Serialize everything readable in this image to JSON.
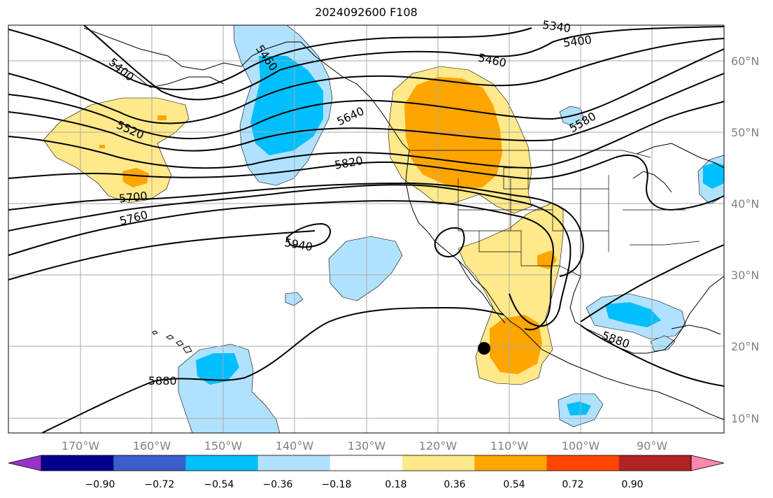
{
  "title": "2024092600 F108",
  "lon_labels": [
    "170°W",
    "160°W",
    "150°W",
    "140°W",
    "130°W",
    "120°W",
    "110°W",
    "100°W",
    "90°W"
  ],
  "lat_labels": [
    "60°N",
    "50°N",
    "40°N",
    "30°N",
    "20°N",
    "10°N"
  ],
  "contour_labels": [
    "5340",
    "5400",
    "5400",
    "5460",
    "5460",
    "5520",
    "5580",
    "5640",
    "5700",
    "5760",
    "5820",
    "5880",
    "5880",
    "5940"
  ],
  "colorbar": {
    "ticks": [
      "−0.90",
      "−0.72",
      "−0.54",
      "−0.36",
      "−0.18",
      "0.18",
      "0.36",
      "0.54",
      "0.72",
      "0.90"
    ],
    "colors": [
      "#9932CC",
      "#00008B",
      "#3A5FCD",
      "#00BFFF",
      "#B0E2FF",
      "#FFFFFF",
      "#FFE98A",
      "#FFA500",
      "#FF4500",
      "#B22222",
      "#FF88AA"
    ]
  },
  "colors": {
    "contour": "#000000",
    "land_border": "#000000",
    "grid": "#A9A9A9",
    "axis_label": "#808080"
  }
}
